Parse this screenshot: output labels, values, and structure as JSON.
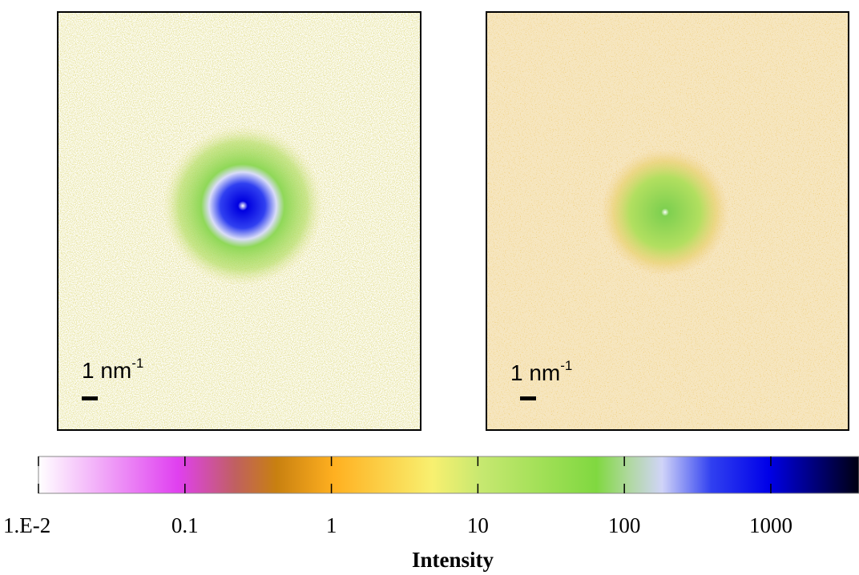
{
  "panels": [
    {
      "scale_bar": {
        "label": "1 nm",
        "superscript": "-1"
      }
    },
    {
      "scale_bar": {
        "label": "1 nm",
        "superscript": "-1"
      }
    }
  ],
  "colorbar": {
    "title": "Intensity",
    "log_scale": true,
    "lim": [
      0.01,
      4000
    ],
    "ticks": [
      {
        "value": 0.01,
        "label": "1.E-2"
      },
      0.1,
      1,
      10,
      100,
      1000
    ]
  }
}
